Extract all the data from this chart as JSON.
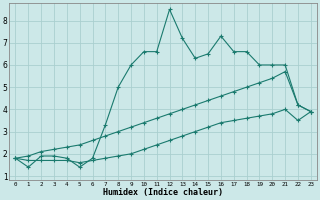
{
  "xlabel": "Humidex (Indice chaleur)",
  "bg_color": "#cce8e8",
  "line_color": "#1a7a6e",
  "grid_color": "#aacfcf",
  "xlim": [
    -0.5,
    23.5
  ],
  "ylim": [
    0.8,
    8.8
  ],
  "xticks": [
    0,
    1,
    2,
    3,
    4,
    5,
    6,
    7,
    8,
    9,
    10,
    11,
    12,
    13,
    14,
    15,
    16,
    17,
    18,
    19,
    20,
    21,
    22,
    23
  ],
  "yticks": [
    1,
    2,
    3,
    4,
    5,
    6,
    7,
    8
  ],
  "line1_x": [
    0,
    1,
    2,
    3,
    4,
    5,
    6,
    7,
    8,
    9,
    10,
    11,
    12,
    13,
    14,
    15,
    16,
    17,
    18,
    19,
    20,
    21,
    22,
    23
  ],
  "line1_y": [
    1.8,
    1.4,
    1.9,
    1.9,
    1.8,
    1.4,
    1.8,
    3.3,
    5.0,
    6.0,
    6.6,
    6.6,
    8.5,
    7.2,
    6.3,
    6.5,
    7.3,
    6.6,
    6.6,
    6.0,
    6.0,
    6.0,
    4.2,
    3.9
  ],
  "line2_x": [
    0,
    1,
    2,
    3,
    4,
    5,
    6,
    7,
    8,
    9,
    10,
    11,
    12,
    13,
    14,
    15,
    16,
    17,
    18,
    19,
    20,
    21,
    22,
    23
  ],
  "line2_y": [
    1.8,
    1.9,
    2.1,
    2.2,
    2.3,
    2.4,
    2.6,
    2.8,
    3.0,
    3.2,
    3.4,
    3.6,
    3.8,
    4.0,
    4.2,
    4.4,
    4.6,
    4.8,
    5.0,
    5.2,
    5.4,
    5.7,
    4.2,
    3.9
  ],
  "line3_x": [
    0,
    1,
    2,
    3,
    4,
    5,
    6,
    7,
    8,
    9,
    10,
    11,
    12,
    13,
    14,
    15,
    16,
    17,
    18,
    19,
    20,
    21,
    22,
    23
  ],
  "line3_y": [
    1.8,
    1.7,
    1.7,
    1.7,
    1.7,
    1.6,
    1.7,
    1.8,
    1.9,
    2.0,
    2.2,
    2.4,
    2.6,
    2.8,
    3.0,
    3.2,
    3.4,
    3.5,
    3.6,
    3.7,
    3.8,
    4.0,
    3.5,
    3.9
  ]
}
